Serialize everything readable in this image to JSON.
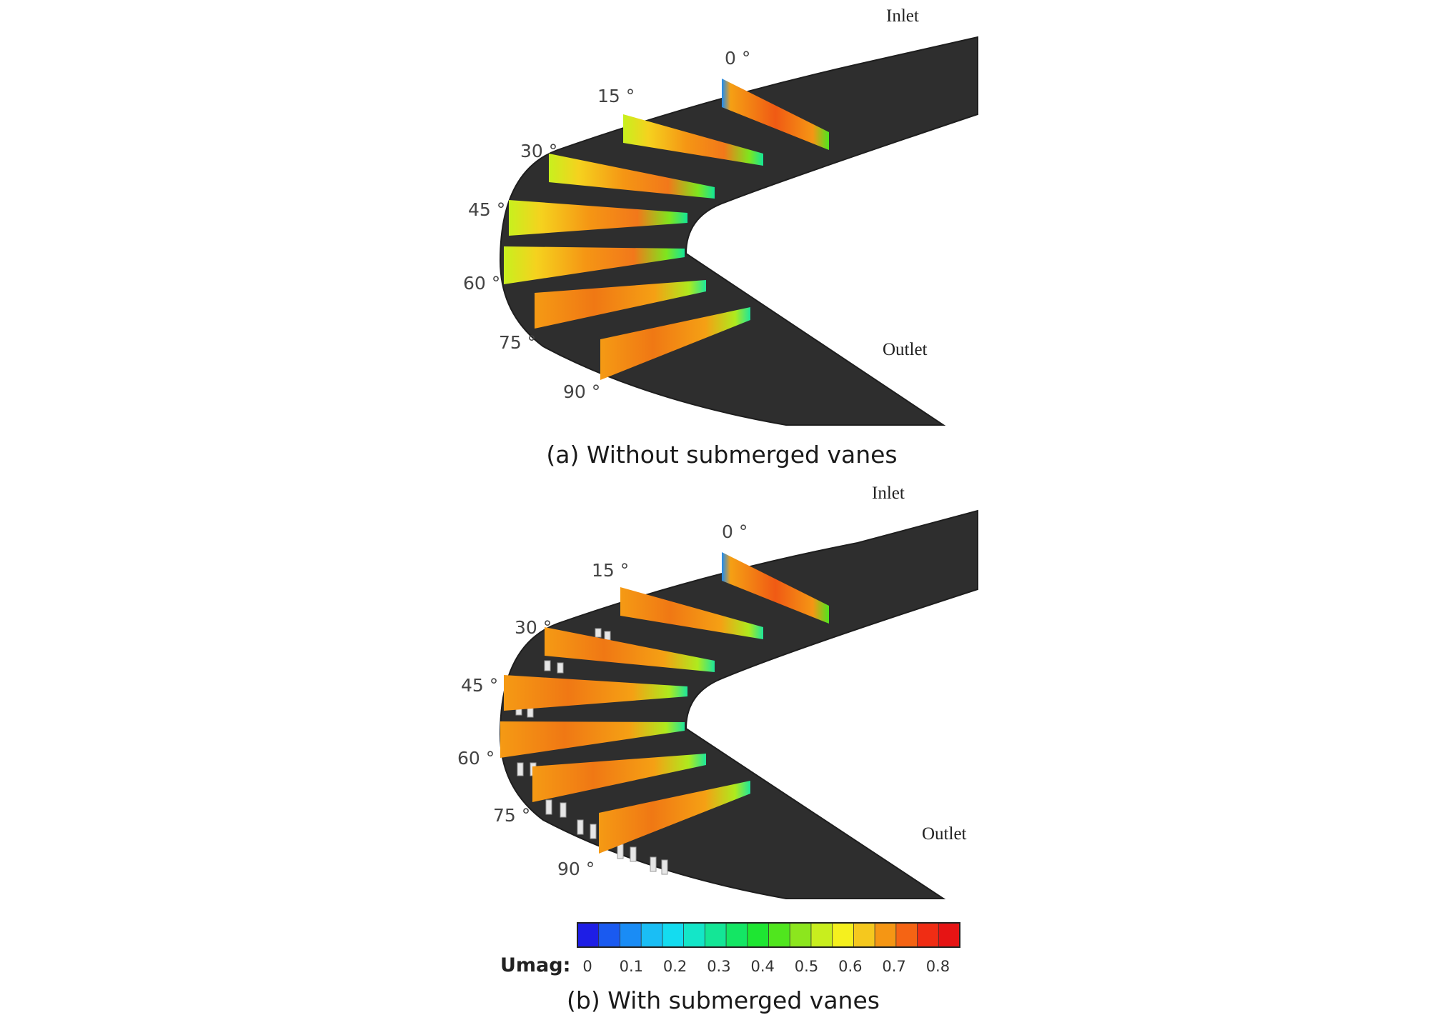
{
  "panels": [
    {
      "caption": "(a) Without submerged vanes",
      "inlet_label": "Inlet",
      "outlet_label": "Outlet",
      "vanes_present": false,
      "section_labels": [
        "0 °",
        "15 °",
        "30 °",
        "45 °",
        "60 °",
        "75 °",
        "90 °"
      ]
    },
    {
      "caption": "(b) With submerged vanes",
      "inlet_label": "Inlet",
      "outlet_label": "Outlet",
      "vanes_present": true,
      "section_labels": [
        "0 °",
        "15 °",
        "30 °",
        "45 °",
        "60 °",
        "75 °",
        "90 °"
      ]
    }
  ],
  "colorbar": {
    "title": "Umag:",
    "ticks": [
      "0",
      "0.1",
      "0.2",
      "0.3",
      "0.4",
      "0.5",
      "0.6",
      "0.7",
      "0.8"
    ],
    "range": [
      0,
      0.85
    ],
    "colors": [
      "#1e1ee6",
      "#1a5af0",
      "#1a8cf5",
      "#1abef5",
      "#14dcf0",
      "#14e6c8",
      "#14e696",
      "#14e664",
      "#1ee632",
      "#50e61e",
      "#8ce61e",
      "#c8ee1e",
      "#f5f01e",
      "#f5c81e",
      "#f59614",
      "#f56414",
      "#f02d14",
      "#e61414"
    ]
  },
  "colors": {
    "channel": "#2e2e2e",
    "channel_edge": "#1e1e1e"
  }
}
